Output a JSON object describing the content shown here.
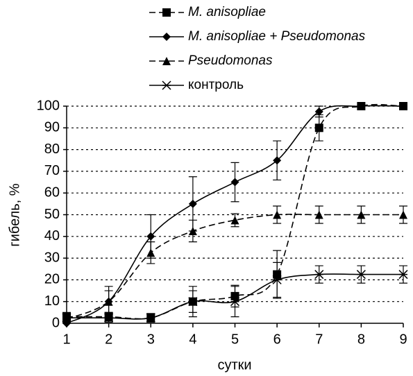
{
  "chart_data": {
    "type": "line",
    "x_label": "сутки",
    "y_label": "гибель, %",
    "x": [
      1,
      2,
      3,
      4,
      5,
      6,
      7,
      8,
      9
    ],
    "xlim": [
      1,
      9
    ],
    "xticks": [
      1,
      2,
      3,
      4,
      5,
      6,
      7,
      8,
      9
    ],
    "ylim": [
      0,
      100
    ],
    "yticks": [
      0,
      10,
      20,
      30,
      40,
      50,
      60,
      70,
      80,
      90,
      100
    ],
    "grid": true,
    "smooth": true,
    "series": [
      {
        "name": "M. anisopliae",
        "color": "#000000",
        "line_style": "dashed",
        "marker": "square",
        "values": [
          3,
          3,
          2.5,
          10,
          12.5,
          22.5,
          90,
          100,
          100
        ],
        "errors": [
          2,
          2,
          2,
          5,
          5,
          11,
          6,
          0,
          0
        ]
      },
      {
        "name": "M. anisopliae + Pseudomonas",
        "color": "#000000",
        "line_style": "solid",
        "marker": "diamond",
        "values": [
          0,
          10,
          40,
          55,
          65,
          75,
          97.5,
          100,
          100
        ],
        "errors": [
          0,
          7,
          10,
          12.5,
          9,
          9,
          2.5,
          0,
          0
        ]
      },
      {
        "name": "Pseudomonas",
        "color": "#000000",
        "line_style": "dashed",
        "marker": "triangle",
        "values": [
          2,
          10,
          32.5,
          42.5,
          47.5,
          50,
          50,
          50,
          50
        ],
        "errors": [
          2,
          5,
          5,
          5,
          3,
          4,
          4,
          4,
          4
        ]
      },
      {
        "name": "контроль",
        "color": "#000000",
        "line_style": "solid",
        "marker": "asterisk",
        "values": [
          2.5,
          2.5,
          2.5,
          10,
          10,
          20,
          22.5,
          22.5,
          22.5
        ],
        "errors": [
          2,
          2,
          2,
          7,
          7,
          8,
          4,
          4,
          4
        ]
      }
    ]
  }
}
